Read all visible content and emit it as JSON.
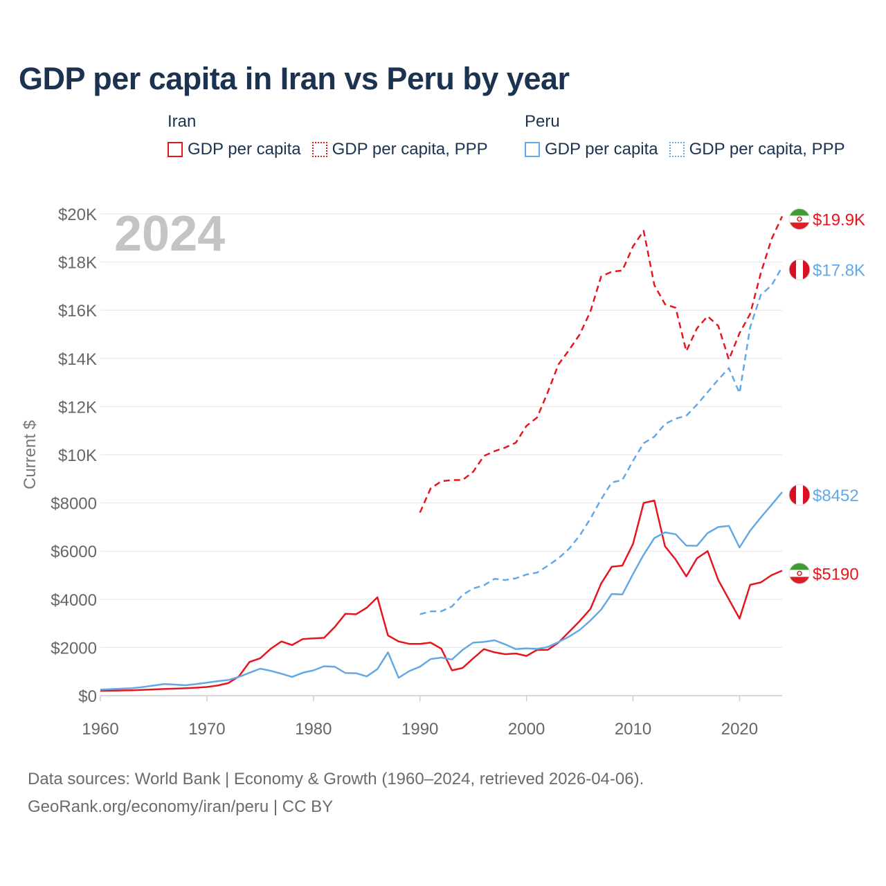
{
  "title": "GDP per capita in Iran vs Peru by year",
  "legend": {
    "groups": [
      {
        "country": "Iran",
        "items": [
          {
            "label": "GDP per capita",
            "color": "#e8141c",
            "style": "solid"
          },
          {
            "label": "GDP per capita, PPP",
            "color": "#e8141c",
            "style": "dotted"
          }
        ]
      },
      {
        "country": "Peru",
        "items": [
          {
            "label": "GDP per capita",
            "color": "#63a8e6",
            "style": "solid"
          },
          {
            "label": "GDP per capita, PPP",
            "color": "#63a8e6",
            "style": "dotted"
          }
        ]
      }
    ]
  },
  "chart_data": {
    "type": "line",
    "year_label": "2024",
    "ylabel": "Current $",
    "xlabel": "",
    "xlim": [
      1960,
      2024
    ],
    "ylim": [
      0,
      20000
    ],
    "x_ticks": [
      1960,
      1970,
      1980,
      1990,
      2000,
      2010,
      2020
    ],
    "x_tick_labels": [
      "1960",
      "1970",
      "1980",
      "1990",
      "2000",
      "2010",
      "2020"
    ],
    "y_ticks": [
      0,
      2000,
      4000,
      6000,
      8000,
      10000,
      12000,
      14000,
      16000,
      18000,
      20000
    ],
    "y_tick_labels": [
      "$0",
      "$2000",
      "$4000",
      "$6000",
      "$8000",
      "$10K",
      "$12K",
      "$14K",
      "$16K",
      "$18K",
      "$20K"
    ],
    "grid": true,
    "series": [
      {
        "name": "Iran GDP per capita",
        "country": "Iran",
        "color": "#e8141c",
        "dash": "solid",
        "end_label": "$5190",
        "x": [
          1960,
          1961,
          1962,
          1963,
          1964,
          1965,
          1966,
          1967,
          1968,
          1969,
          1970,
          1971,
          1972,
          1973,
          1974,
          1975,
          1976,
          1977,
          1978,
          1979,
          1980,
          1981,
          1982,
          1983,
          1984,
          1985,
          1986,
          1987,
          1988,
          1989,
          1990,
          1991,
          1992,
          1993,
          1994,
          1995,
          1996,
          1997,
          1998,
          1999,
          2000,
          2001,
          2002,
          2003,
          2004,
          2005,
          2006,
          2007,
          2008,
          2009,
          2010,
          2011,
          2012,
          2013,
          2014,
          2015,
          2016,
          2017,
          2018,
          2019,
          2020,
          2021,
          2022,
          2023,
          2024
        ],
        "values": [
          200,
          210,
          215,
          225,
          240,
          260,
          275,
          290,
          310,
          330,
          360,
          420,
          520,
          800,
          1400,
          1550,
          1950,
          2250,
          2100,
          2350,
          2380,
          2400,
          2850,
          3400,
          3380,
          3650,
          4080,
          2500,
          2250,
          2150,
          2150,
          2200,
          1950,
          1050,
          1150,
          1550,
          1930,
          1800,
          1720,
          1750,
          1650,
          1900,
          1900,
          2200,
          2650,
          3100,
          3600,
          4650,
          5350,
          5400,
          6300,
          8000,
          8100,
          6200,
          5650,
          4950,
          5700,
          6000,
          4800,
          4000,
          3200,
          4600,
          4700,
          5000,
          5190
        ]
      },
      {
        "name": "Iran GDP per capita, PPP",
        "country": "Iran",
        "color": "#e8141c",
        "dash": "dashed",
        "end_label": "$19.9K",
        "x": [
          1990,
          1991,
          1992,
          1993,
          1994,
          1995,
          1996,
          1997,
          1998,
          1999,
          2000,
          2001,
          2002,
          2003,
          2004,
          2005,
          2006,
          2007,
          2008,
          2009,
          2010,
          2011,
          2012,
          2013,
          2014,
          2015,
          2016,
          2017,
          2018,
          2019,
          2020,
          2021,
          2022,
          2023,
          2024
        ],
        "values": [
          7600,
          8600,
          8900,
          8950,
          8950,
          9300,
          9950,
          10150,
          10300,
          10500,
          11200,
          11550,
          12600,
          13750,
          14350,
          15000,
          15950,
          17400,
          17600,
          17650,
          18650,
          19300,
          17050,
          16250,
          16100,
          14300,
          15250,
          15750,
          15350,
          13950,
          15050,
          15850,
          17550,
          18950,
          19900
        ]
      },
      {
        "name": "Peru GDP per capita",
        "country": "Peru",
        "color": "#63a8e6",
        "dash": "solid",
        "end_label": "$8452",
        "x": [
          1960,
          1961,
          1962,
          1963,
          1964,
          1965,
          1966,
          1967,
          1968,
          1969,
          1970,
          1971,
          1972,
          1973,
          1974,
          1975,
          1976,
          1977,
          1978,
          1979,
          1980,
          1981,
          1982,
          1983,
          1984,
          1985,
          1986,
          1987,
          1988,
          1989,
          1990,
          1991,
          1992,
          1993,
          1994,
          1995,
          1996,
          1997,
          1998,
          1999,
          2000,
          2001,
          2002,
          2003,
          2004,
          2005,
          2006,
          2007,
          2008,
          2009,
          2010,
          2011,
          2012,
          2013,
          2014,
          2015,
          2016,
          2017,
          2018,
          2019,
          2020,
          2021,
          2022,
          2023,
          2024
        ],
        "values": [
          250,
          270,
          290,
          310,
          360,
          420,
          480,
          460,
          430,
          480,
          540,
          600,
          650,
          780,
          950,
          1120,
          1030,
          910,
          780,
          950,
          1050,
          1220,
          1200,
          940,
          930,
          800,
          1100,
          1800,
          740,
          1020,
          1200,
          1520,
          1580,
          1500,
          1900,
          2200,
          2230,
          2300,
          2130,
          1930,
          1960,
          1940,
          2020,
          2220,
          2450,
          2730,
          3120,
          3570,
          4220,
          4200,
          5050,
          5850,
          6540,
          6780,
          6700,
          6230,
          6220,
          6750,
          7000,
          7050,
          6150,
          6850,
          7400,
          7920,
          8452
        ]
      },
      {
        "name": "Peru GDP per capita, PPP",
        "country": "Peru",
        "color": "#63a8e6",
        "dash": "dashed",
        "end_label": "$17.8K",
        "x": [
          1990,
          1991,
          1992,
          1993,
          1994,
          1995,
          1996,
          1997,
          1998,
          1999,
          2000,
          2001,
          2002,
          2003,
          2004,
          2005,
          2006,
          2007,
          2008,
          2009,
          2010,
          2011,
          2012,
          2013,
          2014,
          2015,
          2016,
          2017,
          2018,
          2019,
          2020,
          2021,
          2022,
          2023,
          2024
        ],
        "values": [
          3380,
          3500,
          3500,
          3700,
          4180,
          4450,
          4580,
          4850,
          4800,
          4870,
          5030,
          5110,
          5390,
          5700,
          6100,
          6650,
          7350,
          8150,
          8850,
          8950,
          9750,
          10480,
          10750,
          11280,
          11500,
          11620,
          12080,
          12600,
          13120,
          13600,
          12560,
          15300,
          16640,
          17030,
          17800
        ]
      }
    ]
  },
  "footer": {
    "line1": "Data sources: World Bank | Economy & Growth (1960–2024, retrieved 2026-04-06).",
    "line2": "GeoRank.org/economy/iran/peru | CC BY"
  }
}
